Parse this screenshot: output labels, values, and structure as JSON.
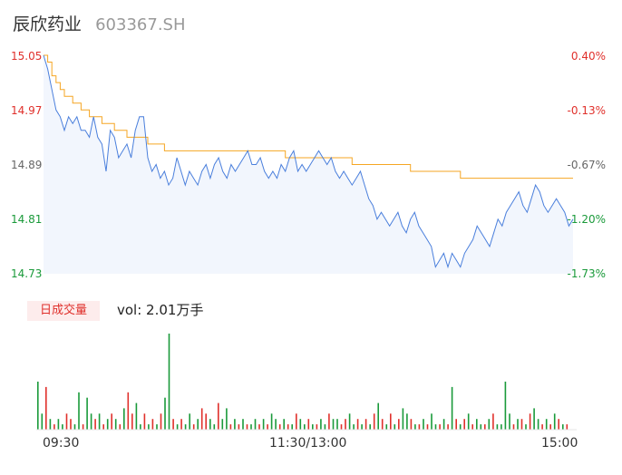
{
  "header": {
    "name": "辰欣药业",
    "code": "603367.SH"
  },
  "volume": {
    "badge": "日成交量",
    "label": "vol: 2.01万手"
  },
  "colors": {
    "up": "#e0302b",
    "down": "#1a9a3a",
    "price_line": "#4a7fdc",
    "avg_line": "#f5a623",
    "area_fill": "#f2f6fd"
  },
  "chart_data": [
    {
      "type": "line",
      "y_ticks": [
        "15.05",
        "14.97",
        "14.89",
        "14.81",
        "14.73"
      ],
      "y_ticks_right": [
        "0.40%",
        "-0.13%",
        "-0.67%",
        "-1.20%",
        "-1.73%"
      ],
      "ylim": [
        14.73,
        15.05
      ],
      "x_labels": [
        "09:30",
        "11:30/13:00",
        "15:00"
      ],
      "series": [
        {
          "values": [
            15.05,
            15.03,
            15.0,
            14.97,
            14.96,
            14.94,
            14.96,
            14.95,
            14.96,
            14.94,
            14.94,
            14.93,
            14.96,
            14.93,
            14.92,
            14.88,
            14.94,
            14.93,
            14.9,
            14.91,
            14.92,
            14.9,
            14.94,
            14.96,
            14.96,
            14.9,
            14.88,
            14.89,
            14.87,
            14.88,
            14.86,
            14.87,
            14.9,
            14.88,
            14.86,
            14.88,
            14.87,
            14.86,
            14.88,
            14.89,
            14.87,
            14.89,
            14.9,
            14.88,
            14.87,
            14.89,
            14.88,
            14.89,
            14.9,
            14.91,
            14.89,
            14.89,
            14.9,
            14.88,
            14.87,
            14.88,
            14.87,
            14.89,
            14.88,
            14.9,
            14.91,
            14.88,
            14.89,
            14.88,
            14.89,
            14.9,
            14.91,
            14.9,
            14.89,
            14.9,
            14.88,
            14.87,
            14.88,
            14.87,
            14.86,
            14.87,
            14.88,
            14.86,
            14.84,
            14.83,
            14.81,
            14.82,
            14.81,
            14.8,
            14.81,
            14.82,
            14.8,
            14.79,
            14.81,
            14.82,
            14.8,
            14.79,
            14.78,
            14.77,
            14.74,
            14.75,
            14.76,
            14.74,
            14.76,
            14.75,
            14.74,
            14.76,
            14.77,
            14.78,
            14.8,
            14.79,
            14.78,
            14.77,
            14.79,
            14.81,
            14.8,
            14.82,
            14.83,
            14.84,
            14.85,
            14.83,
            14.82,
            14.84,
            14.86,
            14.85,
            14.83,
            14.82,
            14.83,
            14.84,
            14.83,
            14.82,
            14.8,
            14.81
          ]
        },
        {
          "values": [
            15.05,
            15.04,
            15.02,
            15.01,
            15.0,
            14.99,
            14.99,
            14.98,
            14.98,
            14.97,
            14.97,
            14.96,
            14.96,
            14.96,
            14.95,
            14.95,
            14.95,
            14.94,
            14.94,
            14.94,
            14.93,
            14.93,
            14.93,
            14.93,
            14.93,
            14.92,
            14.92,
            14.92,
            14.92,
            14.91,
            14.91,
            14.91,
            14.91,
            14.91,
            14.91,
            14.91,
            14.91,
            14.91,
            14.91,
            14.91,
            14.91,
            14.91,
            14.91,
            14.91,
            14.91,
            14.91,
            14.91,
            14.91,
            14.91,
            14.91,
            14.91,
            14.91,
            14.91,
            14.91,
            14.91,
            14.91,
            14.91,
            14.91,
            14.9,
            14.9,
            14.9,
            14.9,
            14.9,
            14.9,
            14.9,
            14.9,
            14.9,
            14.9,
            14.9,
            14.9,
            14.9,
            14.9,
            14.9,
            14.9,
            14.89,
            14.89,
            14.89,
            14.89,
            14.89,
            14.89,
            14.89,
            14.89,
            14.89,
            14.89,
            14.89,
            14.89,
            14.89,
            14.89,
            14.88,
            14.88,
            14.88,
            14.88,
            14.88,
            14.88,
            14.88,
            14.88,
            14.88,
            14.88,
            14.88,
            14.88,
            14.87,
            14.87,
            14.87,
            14.87,
            14.87,
            14.87,
            14.87,
            14.87,
            14.87,
            14.87,
            14.87,
            14.87,
            14.87,
            14.87,
            14.87,
            14.87,
            14.87,
            14.87,
            14.87,
            14.87,
            14.87,
            14.87,
            14.87,
            14.87,
            14.87,
            14.87,
            14.87,
            14.87
          ]
        }
      ]
    },
    {
      "type": "bar",
      "values": [
        9,
        3,
        8,
        2,
        1,
        2,
        1,
        3,
        2,
        1,
        7,
        1,
        6,
        3,
        2,
        3,
        1,
        2,
        3,
        2,
        1,
        4,
        7,
        3,
        5,
        1,
        3,
        1,
        2,
        1,
        3,
        6,
        18,
        2,
        1,
        2,
        1,
        3,
        1,
        2,
        4,
        3,
        2,
        1,
        5,
        2,
        4,
        1,
        2,
        1,
        2,
        1,
        1,
        2,
        1,
        2,
        1,
        3,
        2,
        1,
        2,
        1,
        1,
        3,
        2,
        1,
        2,
        1,
        1,
        2,
        1,
        3,
        2,
        2,
        1,
        2,
        3,
        1,
        2,
        1,
        2,
        1,
        3,
        5,
        2,
        1,
        3,
        1,
        2,
        4,
        3,
        2,
        1,
        1,
        2,
        1,
        3,
        1,
        1,
        2,
        1,
        8,
        2,
        1,
        2,
        3,
        1,
        2,
        1,
        1,
        2,
        3,
        1,
        1,
        9,
        3,
        1,
        2,
        2,
        1,
        3,
        4,
        2,
        1,
        2,
        1,
        3,
        2,
        1,
        1
      ],
      "up": [
        false,
        false,
        true,
        false,
        true,
        false,
        false,
        true,
        true,
        false,
        false,
        true,
        false,
        false,
        true,
        false,
        true,
        false,
        true,
        false,
        true,
        false,
        true,
        true,
        false,
        false,
        true,
        false,
        true,
        false,
        true,
        false,
        false,
        true,
        false,
        true,
        false,
        false,
        true,
        false,
        true,
        true,
        false,
        false,
        true,
        false,
        false,
        true,
        false,
        true,
        false,
        true,
        false,
        false,
        true,
        false,
        true,
        false,
        false,
        true,
        false,
        true,
        false,
        true,
        false,
        false,
        true,
        false,
        true,
        false,
        false,
        true,
        false,
        false,
        true,
        true,
        false,
        false,
        true,
        false,
        true,
        false,
        true,
        false,
        true,
        false,
        true,
        false,
        true,
        false,
        false,
        true,
        false,
        true,
        false,
        true,
        false,
        false,
        true,
        false,
        true,
        false,
        true,
        false,
        true,
        false,
        true,
        false,
        false,
        true,
        false,
        true,
        false,
        false,
        false,
        false,
        true,
        false,
        true,
        false,
        true,
        false,
        false,
        true,
        false,
        true,
        false,
        true,
        false,
        true
      ]
    }
  ]
}
